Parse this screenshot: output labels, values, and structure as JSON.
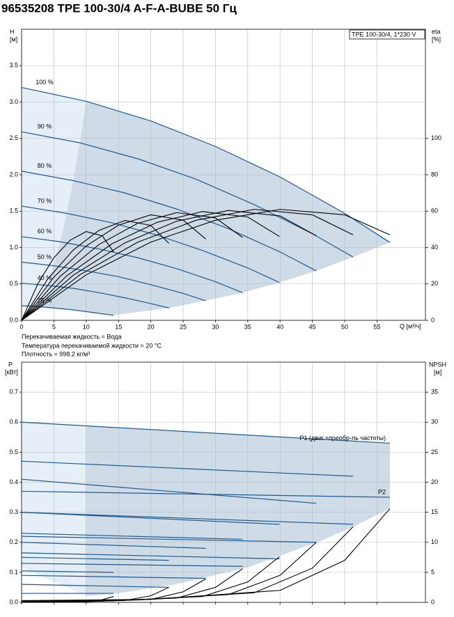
{
  "title": "96535208 TPE 100-30/4 A-F-A-BUBE 50 Гц",
  "chart_data": [
    {
      "type": "line",
      "label_box": "TPE 100-30/4, 1*230 V",
      "x_label": "Q [м³/ч]",
      "y_label": "H",
      "y_unit": "[м]",
      "y2_label": "eta",
      "y2_unit": "[%]",
      "xlim": [
        0,
        62.5
      ],
      "xticks": [
        0,
        5,
        10,
        15,
        20,
        25,
        30,
        35,
        40,
        45,
        50,
        55
      ],
      "ylim": [
        0,
        4.0
      ],
      "yticks": [
        {
          "value": 0,
          "label": "0.0"
        },
        0.5,
        {
          "value": 1,
          "label": "1.0"
        },
        1.5,
        {
          "value": 2,
          "label": "2.0"
        },
        2.5,
        {
          "value": 3,
          "label": "3.0"
        },
        3.5
      ],
      "y2lim": [
        0,
        160
      ],
      "y2ticks": [
        0,
        20,
        40,
        60,
        80,
        100
      ],
      "grid": true,
      "shaded": true,
      "notes": [
        "Перекачиваемая жидкость = Вода",
        "Температура перекачиваемой жидкости = 20 °C",
        "Плотность = 998.2 кг/м³"
      ],
      "series": [
        {
          "name": "100 %",
          "color": "#1b5a94",
          "x": [
            0,
            10,
            20,
            30,
            40,
            50,
            57
          ],
          "values": [
            3.2,
            3.01,
            2.74,
            2.39,
            1.97,
            1.47,
            1.07
          ]
        },
        {
          "name": "90 %",
          "color": "#1b5a94",
          "x": [
            0,
            9,
            18,
            27,
            36,
            45,
            51.3
          ],
          "values": [
            2.59,
            2.44,
            2.22,
            1.94,
            1.59,
            1.19,
            0.87
          ]
        },
        {
          "name": "80 %",
          "color": "#1b5a94",
          "x": [
            0,
            8,
            16,
            24,
            32,
            40,
            45.6
          ],
          "values": [
            2.05,
            1.92,
            1.75,
            1.53,
            1.26,
            0.94,
            0.68
          ]
        },
        {
          "name": "70 %",
          "color": "#1b5a94",
          "x": [
            0,
            7,
            14,
            21,
            28,
            35,
            39.9
          ],
          "values": [
            1.57,
            1.47,
            1.34,
            1.17,
            0.96,
            0.72,
            0.52
          ]
        },
        {
          "name": "60 %",
          "color": "#1b5a94",
          "x": [
            0,
            6,
            12,
            18,
            24,
            30,
            34.2
          ],
          "values": [
            1.15,
            1.08,
            0.98,
            0.86,
            0.71,
            0.53,
            0.38
          ]
        },
        {
          "name": "50 %",
          "color": "#1b5a94",
          "x": [
            0,
            5,
            10,
            15,
            20,
            25,
            28.5
          ],
          "values": [
            0.8,
            0.75,
            0.68,
            0.6,
            0.49,
            0.37,
            0.27
          ]
        },
        {
          "name": "40 %",
          "color": "#1b5a94",
          "x": [
            0,
            4,
            8,
            12,
            16,
            20,
            22.8
          ],
          "values": [
            0.51,
            0.48,
            0.44,
            0.38,
            0.31,
            0.23,
            0.17
          ]
        },
        {
          "name": "25 %",
          "color": "#1b5a94",
          "x": [
            0,
            2.5,
            5,
            7.5,
            10,
            12.5,
            14.25
          ],
          "values": [
            0.2,
            0.19,
            0.17,
            0.15,
            0.12,
            0.09,
            0.07
          ]
        },
        {
          "color": "#000000",
          "axis": "y2",
          "x": [
            0,
            10,
            20,
            30,
            40,
            50,
            57
          ],
          "values": [
            0,
            25,
            43,
            55,
            61,
            58,
            47
          ]
        },
        {
          "color": "#000000",
          "axis": "y2",
          "x": [
            0,
            9,
            18,
            27,
            36,
            45,
            51.3
          ],
          "values": [
            0,
            25,
            43,
            55,
            61,
            58,
            47
          ]
        },
        {
          "color": "#000000",
          "axis": "y2",
          "x": [
            0,
            8,
            16,
            24,
            32,
            40,
            45.6
          ],
          "values": [
            0,
            24.8,
            42.6,
            54.5,
            60.4,
            57.4,
            46.5
          ]
        },
        {
          "color": "#000000",
          "axis": "y2",
          "x": [
            0,
            7,
            14,
            21,
            28,
            35,
            39.9
          ],
          "values": [
            0,
            24.5,
            42.1,
            53.9,
            59.8,
            56.8,
            46.1
          ]
        },
        {
          "color": "#000000",
          "axis": "y2",
          "x": [
            0,
            6,
            12,
            18,
            24,
            30,
            34.2
          ],
          "values": [
            0,
            24.3,
            41.7,
            53.4,
            59.2,
            56.3,
            45.6
          ]
        },
        {
          "color": "#000000",
          "axis": "y2",
          "x": [
            0,
            5,
            10,
            15,
            20,
            25,
            28.5
          ],
          "values": [
            0,
            23.8,
            40.9,
            52.3,
            58,
            55.1,
            44.7
          ]
        },
        {
          "color": "#000000",
          "axis": "y2",
          "x": [
            0,
            4,
            8,
            12,
            16,
            20,
            22.8
          ],
          "values": [
            0,
            22.5,
            38.7,
            49.5,
            54.9,
            52.2,
            42.3
          ]
        },
        {
          "color": "#000000",
          "axis": "y2",
          "x": [
            0,
            2.5,
            5,
            7.5,
            10,
            12.5,
            14.25
          ],
          "values": [
            0,
            20,
            34.4,
            44,
            48.8,
            46.4,
            37.6
          ]
        }
      ]
    },
    {
      "type": "line",
      "y_label": "P",
      "y_unit": "[кВт]",
      "y2_label": "NPSH",
      "y2_unit": "[м]",
      "xlim": [
        0,
        62.5
      ],
      "xticks": [
        0,
        5,
        10,
        15,
        20,
        25,
        30,
        35,
        40,
        45,
        50,
        55
      ],
      "xtick_labels": false,
      "ylim": [
        0,
        0.8
      ],
      "yticks": [
        {
          "value": 0,
          "label": "0.0"
        },
        0.1,
        0.2,
        0.3,
        0.4,
        0.5,
        0.6,
        0.7
      ],
      "y2lim": [
        0,
        40
      ],
      "y2ticks": [
        0,
        5,
        10,
        15,
        20,
        25,
        30,
        35
      ],
      "grid": true,
      "series": [
        {
          "name": "P1 (двиг.+преобр-ль частоты)",
          "color": "#1b5a94",
          "x": [
            0,
            57
          ],
          "values": [
            0.6,
            0.53
          ]
        },
        {
          "color": "#1b5a94",
          "x": [
            0,
            51.3
          ],
          "values": [
            0.47,
            0.42
          ]
        },
        {
          "color": "#1b5a94",
          "x": [
            0,
            45.6
          ],
          "values": [
            0.41,
            0.33
          ]
        },
        {
          "color": "#1b5a94",
          "x": [
            0,
            39.9
          ],
          "values": [
            0.3,
            0.26
          ]
        },
        {
          "color": "#1b5a94",
          "x": [
            0,
            34.2
          ],
          "values": [
            0.23,
            0.21
          ]
        },
        {
          "color": "#1b5a94",
          "x": [
            0,
            28.5
          ],
          "values": [
            0.2,
            0.18
          ]
        },
        {
          "color": "#1b5a94",
          "x": [
            0,
            22.8
          ],
          "values": [
            0.15,
            0.14
          ]
        },
        {
          "color": "#1b5a94",
          "x": [
            0,
            14.25
          ],
          "values": [
            0.105,
            0.1
          ]
        },
        {
          "name": "P2",
          "color": "#1b5a94",
          "x": [
            0,
            57
          ],
          "values": [
            0.37,
            0.35
          ]
        },
        {
          "color": "#1b5a94",
          "x": [
            0,
            51.3
          ],
          "values": [
            0.3,
            0.26
          ]
        },
        {
          "color": "#1b5a94",
          "x": [
            0,
            45.6
          ],
          "values": [
            0.22,
            0.2
          ]
        },
        {
          "color": "#1b5a94",
          "x": [
            0,
            39.9
          ],
          "values": [
            0.165,
            0.145
          ]
        },
        {
          "color": "#1b5a94",
          "x": [
            0,
            34.2
          ],
          "values": [
            0.13,
            0.12
          ]
        },
        {
          "color": "#1b5a94",
          "x": [
            0,
            28.5
          ],
          "values": [
            0.09,
            0.08
          ]
        },
        {
          "color": "#1b5a94",
          "x": [
            0,
            22.8
          ],
          "values": [
            0.06,
            0.05
          ]
        },
        {
          "color": "#1b5a94",
          "x": [
            0,
            14.25
          ],
          "values": [
            0.03,
            0.03
          ]
        },
        {
          "color": "#000000",
          "axis": "y2",
          "x": [
            0,
            20,
            40,
            50,
            57
          ],
          "values": [
            0.3,
            0.5,
            2,
            7,
            15.6
          ]
        },
        {
          "color": "#000000",
          "axis": "y2",
          "x": [
            0,
            18,
            36,
            45,
            51.3
          ],
          "values": [
            0.24,
            0.4,
            1.6,
            5.7,
            12.6
          ]
        },
        {
          "color": "#000000",
          "axis": "y2",
          "x": [
            0,
            16,
            32,
            40,
            45.6
          ],
          "values": [
            0.19,
            0.32,
            1.3,
            4.5,
            10
          ]
        },
        {
          "color": "#000000",
          "axis": "y2",
          "x": [
            0,
            14,
            28,
            35,
            39.9
          ],
          "values": [
            0.15,
            0.25,
            0.98,
            3.4,
            7.6
          ]
        },
        {
          "color": "#000000",
          "axis": "y2",
          "x": [
            0,
            12,
            24,
            30,
            34.2
          ],
          "values": [
            0.11,
            0.18,
            0.72,
            2.5,
            5.6
          ]
        },
        {
          "color": "#000000",
          "axis": "y2",
          "x": [
            0,
            10,
            20,
            25,
            28.5
          ],
          "values": [
            0.08,
            0.13,
            0.5,
            1.75,
            3.9
          ]
        },
        {
          "color": "#000000",
          "axis": "y2",
          "x": [
            0,
            8,
            16,
            20,
            22.8
          ],
          "values": [
            0.05,
            0.08,
            0.32,
            1.1,
            2.5
          ]
        },
        {
          "color": "#000000",
          "axis": "y2",
          "x": [
            0,
            5,
            10,
            12.5,
            14.25
          ],
          "values": [
            0.02,
            0.03,
            0.13,
            0.44,
            0.98
          ]
        }
      ]
    }
  ]
}
